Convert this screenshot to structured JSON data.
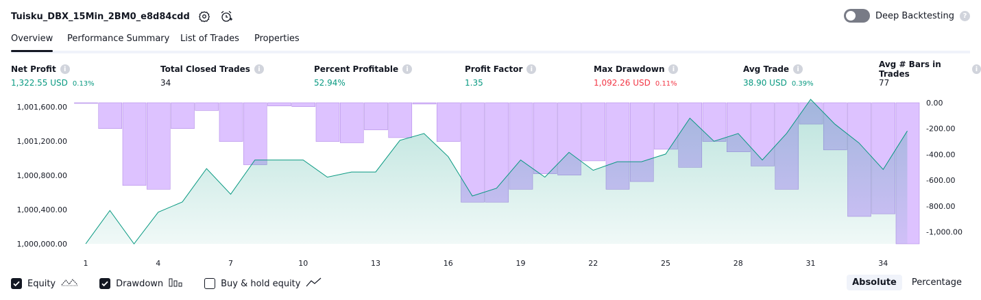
{
  "header": {
    "strategy_name": "Tuisku_DBX_15Min_2BM0_e8d84cdd",
    "settings_icon": "gear-icon",
    "alert_icon": "alarm-clock-add-icon"
  },
  "deep_backtesting": {
    "label": "Deep Backtesting",
    "enabled": false
  },
  "tabs": [
    {
      "label": "Overview",
      "active": true
    },
    {
      "label": "Performance Summary",
      "active": false
    },
    {
      "label": "List of Trades",
      "active": false
    },
    {
      "label": "Properties",
      "active": false
    }
  ],
  "metrics": [
    {
      "label": "Net Profit",
      "value": "1,322.55 USD",
      "pct": "0.13%",
      "color": "#089981"
    },
    {
      "label": "Total Closed Trades",
      "value": "34",
      "pct": "",
      "color": "#131722"
    },
    {
      "label": "Percent Profitable",
      "value": "52.94%",
      "pct": "",
      "color": "#089981"
    },
    {
      "label": "Profit Factor",
      "value": "1.35",
      "pct": "",
      "color": "#089981"
    },
    {
      "label": "Max Drawdown",
      "value": "1,092.26 USD",
      "pct": "0.11%",
      "color": "#f23645"
    },
    {
      "label": "Avg Trade",
      "value": "38.90 USD",
      "pct": "0.39%",
      "color": "#089981"
    },
    {
      "label": "Avg # Bars in Trades",
      "value": "77",
      "pct": "",
      "color": "#131722"
    }
  ],
  "chart_data": {
    "type": "line",
    "x": [
      1,
      2,
      3,
      4,
      5,
      6,
      7,
      8,
      9,
      10,
      11,
      12,
      13,
      14,
      15,
      16,
      17,
      18,
      19,
      20,
      21,
      22,
      23,
      24,
      25,
      26,
      27,
      28,
      29,
      30,
      31,
      32,
      33,
      34,
      35
    ],
    "x_ticks": [
      "1",
      "4",
      "7",
      "10",
      "13",
      "16",
      "19",
      "22",
      "25",
      "28",
      "31",
      "34"
    ],
    "left_axis": {
      "ticks": [
        "1,000,000.00",
        "1,000,400.00",
        "1,000,800.00",
        "1,001,200.00",
        "1,001,600.00"
      ],
      "range": [
        1000000,
        1001650
      ]
    },
    "right_axis": {
      "ticks": [
        "0.00",
        "-200.00",
        "-400.00",
        "-600.00",
        "-800.00",
        "-1,000.00"
      ],
      "range": [
        -1092.26,
        0
      ]
    },
    "series": [
      {
        "name": "Equity",
        "color": "#089981",
        "values": [
          1000000,
          1000390,
          1000000,
          1000370,
          1000490,
          1000880,
          1000580,
          1000980,
          1000980,
          1000980,
          1000780,
          1000840,
          1000840,
          1001210,
          1001290,
          1001020,
          1000560,
          1000650,
          1000980,
          1000780,
          1001070,
          1000860,
          1000960,
          1000960,
          1001050,
          1001470,
          1001200,
          1001290,
          1000980,
          1001290,
          1001690,
          1001400,
          1001180,
          1000870,
          1001320
        ]
      },
      {
        "name": "Drawdown",
        "color": "#c799ff",
        "values": [
          -5,
          -200,
          -640,
          -670,
          -200,
          -60,
          -300,
          -480,
          -25,
          -30,
          -300,
          -310,
          -210,
          -270,
          -10,
          -300,
          -770,
          -770,
          -670,
          -550,
          -560,
          -450,
          -670,
          -610,
          -360,
          -500,
          -300,
          -380,
          -490,
          -670,
          -165,
          -365,
          -880,
          -860,
          -1092.26
        ]
      }
    ]
  },
  "legend": [
    {
      "label": "Equity",
      "checked": true,
      "icon": "equity-line-icon"
    },
    {
      "label": "Drawdown",
      "checked": true,
      "icon": "drawdown-bars-icon"
    },
    {
      "label": "Buy & hold equity",
      "checked": false,
      "icon": "buy-hold-line-icon"
    }
  ],
  "mode": {
    "absolute": "Absolute",
    "percentage": "Percentage",
    "selected": "Absolute"
  }
}
